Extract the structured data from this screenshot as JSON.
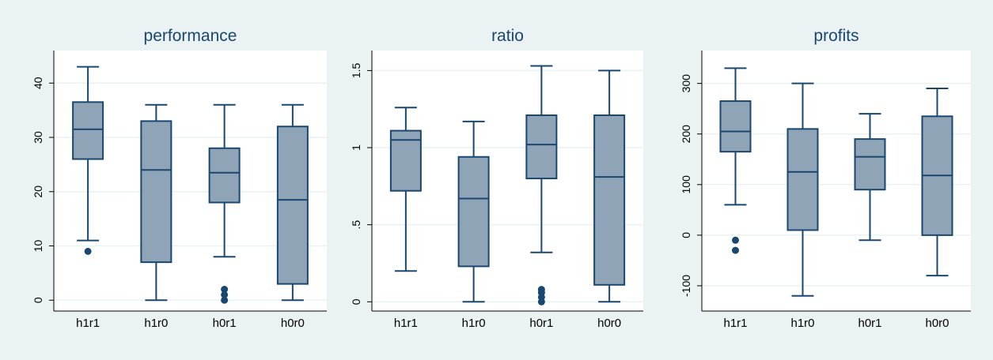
{
  "colors": {
    "background": "#eaf2f3",
    "plot_background": "#ffffff",
    "box_fill": "#8fa4b7",
    "box_line": "#1a476f",
    "grid": "#eaf2f3",
    "text": "#000000"
  },
  "chart_data": [
    {
      "type": "box",
      "title": "performance",
      "categories": [
        "h1r1",
        "h1r0",
        "h0r1",
        "h0r0"
      ],
      "ylim": [
        -2,
        46
      ],
      "yticks": [
        0,
        10,
        20,
        30,
        40
      ],
      "ytick_labels": [
        "0",
        "10",
        "20",
        "30",
        "40"
      ],
      "grid": true,
      "boxes": [
        {
          "whisker_low": 11,
          "q1": 26,
          "median": 31.5,
          "q3": 36.5,
          "whisker_high": 43,
          "outliers": [
            9
          ]
        },
        {
          "whisker_low": 0,
          "q1": 7,
          "median": 24,
          "q3": 33,
          "whisker_high": 36,
          "outliers": []
        },
        {
          "whisker_low": 8,
          "q1": 18,
          "median": 23.5,
          "q3": 28,
          "whisker_high": 36,
          "outliers": [
            0,
            1,
            2
          ]
        },
        {
          "whisker_low": 0,
          "q1": 3,
          "median": 18.5,
          "q3": 32,
          "whisker_high": 36,
          "outliers": []
        }
      ]
    },
    {
      "type": "box",
      "title": "ratio",
      "categories": [
        "h1r1",
        "h1r0",
        "h0r1",
        "h0r0"
      ],
      "ylim": [
        -0.06,
        1.63
      ],
      "yticks": [
        0,
        0.5,
        1,
        1.5
      ],
      "ytick_labels": [
        "0",
        ".5",
        "1",
        "1.5"
      ],
      "grid": true,
      "boxes": [
        {
          "whisker_low": 0.2,
          "q1": 0.72,
          "median": 1.05,
          "q3": 1.11,
          "whisker_high": 1.26,
          "outliers": []
        },
        {
          "whisker_low": 0,
          "q1": 0.23,
          "median": 0.67,
          "q3": 0.94,
          "whisker_high": 1.17,
          "outliers": []
        },
        {
          "whisker_low": 0.32,
          "q1": 0.8,
          "median": 1.02,
          "q3": 1.21,
          "whisker_high": 1.53,
          "outliers": [
            0,
            0.03,
            0.06,
            0.08
          ]
        },
        {
          "whisker_low": 0,
          "q1": 0.11,
          "median": 0.81,
          "q3": 1.21,
          "whisker_high": 1.5,
          "outliers": []
        }
      ]
    },
    {
      "type": "box",
      "title": "profits",
      "categories": [
        "h1r1",
        "h1r0",
        "h0r1",
        "h0r0"
      ],
      "ylim": [
        -150,
        365
      ],
      "yticks": [
        -100,
        0,
        100,
        200,
        300
      ],
      "ytick_labels": [
        "-100",
        "0",
        "100",
        "200",
        "300"
      ],
      "grid": true,
      "boxes": [
        {
          "whisker_low": 60,
          "q1": 165,
          "median": 205,
          "q3": 265,
          "whisker_high": 330,
          "outliers": [
            -10,
            -30
          ]
        },
        {
          "whisker_low": -120,
          "q1": 10,
          "median": 125,
          "q3": 210,
          "whisker_high": 300,
          "outliers": []
        },
        {
          "whisker_low": -10,
          "q1": 90,
          "median": 155,
          "q3": 190,
          "whisker_high": 240,
          "outliers": []
        },
        {
          "whisker_low": -80,
          "q1": 0,
          "median": 118,
          "q3": 235,
          "whisker_high": 290,
          "outliers": []
        }
      ]
    }
  ]
}
